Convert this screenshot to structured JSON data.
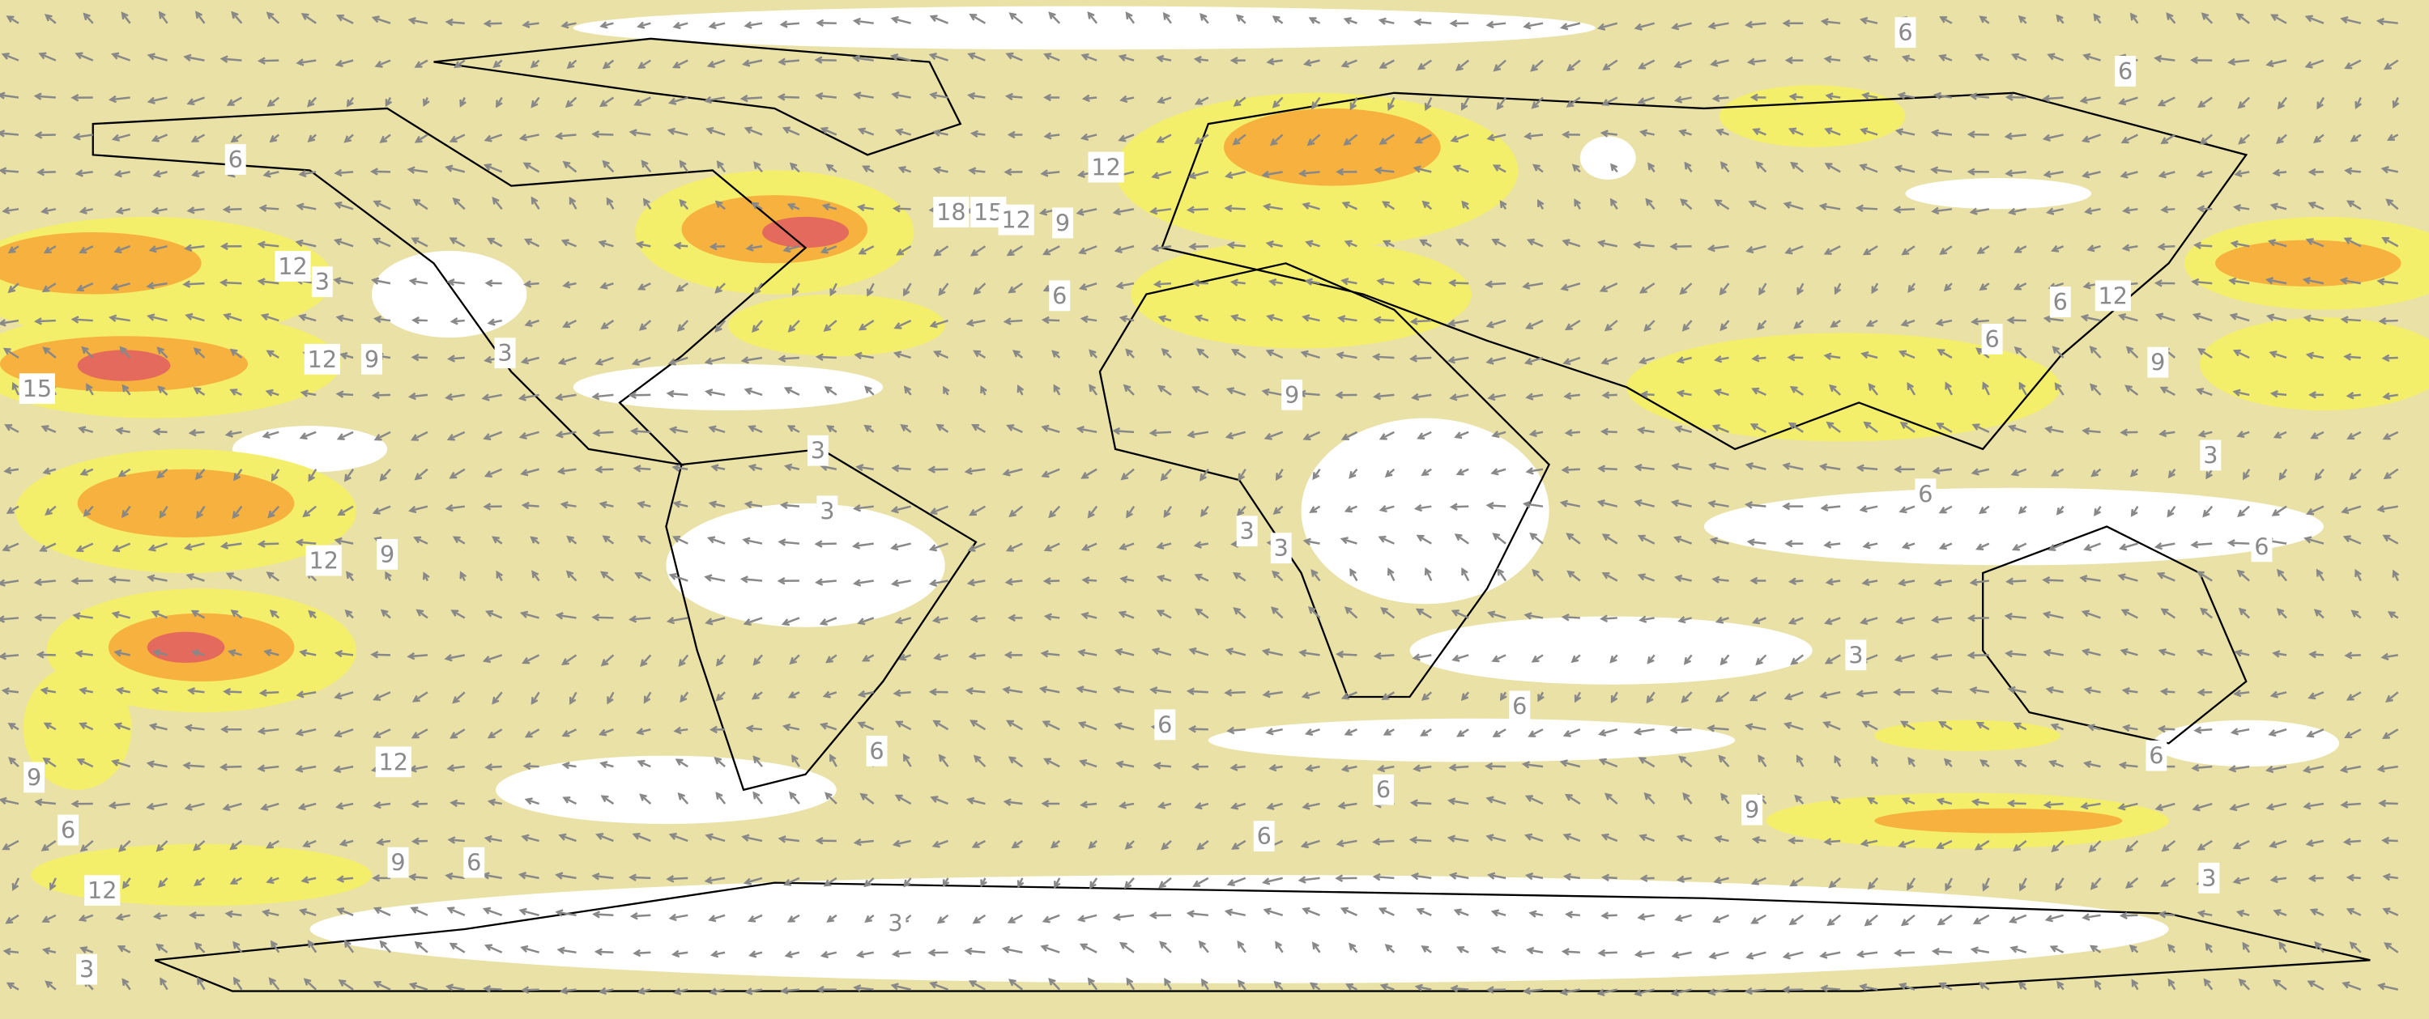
{
  "map": {
    "contour_labels": [
      6,
      6,
      6,
      12,
      18,
      15,
      12,
      9,
      12,
      3,
      6,
      12,
      6,
      12,
      9,
      15,
      3,
      9,
      9,
      6,
      3,
      3,
      3,
      6,
      3,
      3,
      12,
      9,
      6,
      3,
      6,
      6,
      12,
      6,
      6,
      9,
      6,
      9,
      6,
      6,
      9,
      6,
      12,
      3,
      3,
      3
    ]
  }
}
